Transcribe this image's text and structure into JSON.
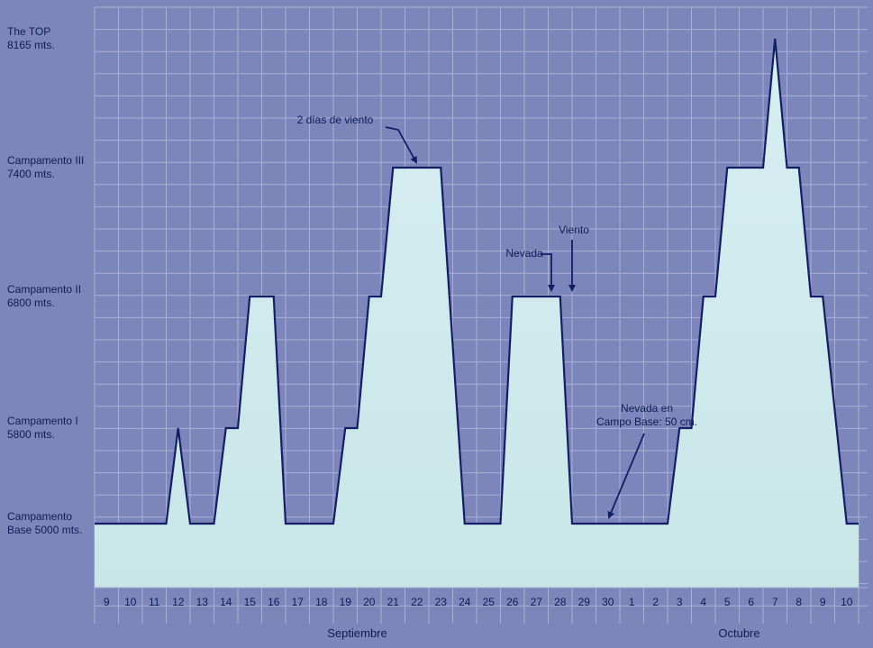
{
  "chart_data": {
    "type": "area",
    "title": "",
    "xlabel": "",
    "ylabel": "",
    "y_levels": [
      {
        "line1": "The TOP",
        "line2": "8165 mts.",
        "value": 8165
      },
      {
        "line1": "Campamento III",
        "line2": "7400 mts.",
        "value": 7400
      },
      {
        "line1": "Campamento II",
        "line2": "6800 mts.",
        "value": 6800
      },
      {
        "line1": "Campamento I",
        "line2": "5800 mts.",
        "value": 5800
      },
      {
        "line1": "Campamento",
        "line2": "Base 5000 mts.",
        "value": 5000
      }
    ],
    "x_ticks": [
      "9",
      "10",
      "11",
      "12",
      "13",
      "14",
      "15",
      "16",
      "17",
      "18",
      "19",
      "20",
      "21",
      "22",
      "23",
      "24",
      "25",
      "26",
      "27",
      "28",
      "29",
      "30",
      "1",
      "2",
      "3",
      "4",
      "5",
      "6",
      "7",
      "8",
      "9",
      "10"
    ],
    "months": [
      {
        "label": "Septiembre",
        "start_index": 0,
        "end_index": 21
      },
      {
        "label": "Octubre",
        "start_index": 22,
        "end_index": 31
      }
    ],
    "series": [
      {
        "altitude_profile": [
          [
            0.0,
            5000
          ],
          [
            3.0,
            5000
          ],
          [
            3.5,
            5800
          ],
          [
            4.0,
            5000
          ],
          [
            5.0,
            5000
          ],
          [
            5.5,
            5800
          ],
          [
            6.0,
            5800
          ],
          [
            6.5,
            6800
          ],
          [
            7.5,
            6800
          ],
          [
            8.0,
            5000
          ],
          [
            10.0,
            5000
          ],
          [
            10.5,
            5800
          ],
          [
            11.0,
            5800
          ],
          [
            11.5,
            6800
          ],
          [
            12.0,
            6800
          ],
          [
            12.5,
            7400
          ],
          [
            14.5,
            7400
          ],
          [
            15.5,
            5000
          ],
          [
            17.0,
            5000
          ],
          [
            17.5,
            6800
          ],
          [
            19.5,
            6800
          ],
          [
            20.0,
            5000
          ],
          [
            24.0,
            5000
          ],
          [
            24.5,
            5800
          ],
          [
            25.0,
            5800
          ],
          [
            25.5,
            6800
          ],
          [
            26.0,
            6800
          ],
          [
            26.5,
            7400
          ],
          [
            28.0,
            7400
          ],
          [
            28.5,
            8165
          ],
          [
            29.0,
            7400
          ],
          [
            29.5,
            7400
          ],
          [
            30.0,
            6800
          ],
          [
            30.5,
            6800
          ],
          [
            31.5,
            5000
          ],
          [
            32.0,
            5000
          ]
        ]
      }
    ],
    "annotations": [
      {
        "lines": [
          "2 días de viento"
        ]
      },
      {
        "lines": [
          "Nevada"
        ]
      },
      {
        "lines": [
          "Viento"
        ]
      },
      {
        "lines": [
          "Nevada en",
          "Campo Base: 50 cm."
        ]
      }
    ],
    "grid": true,
    "colors": {
      "background": "#7d86bb",
      "grid": "#a9b0d6",
      "fill_top": "#d8eef2",
      "fill_bottom": "#c8e6e8",
      "outline": "#141e66",
      "text": "#0f1c54"
    }
  }
}
